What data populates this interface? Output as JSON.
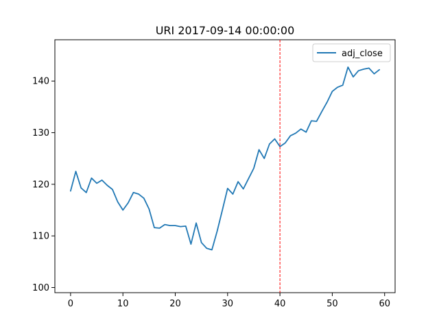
{
  "chart_data": {
    "type": "line",
    "title": "URI 2017-09-14 00:00:00",
    "xlabel": "",
    "ylabel": "",
    "xlim": [
      -3,
      62
    ],
    "ylim": [
      99,
      148
    ],
    "xticks": [
      0,
      10,
      20,
      30,
      40,
      50,
      60
    ],
    "yticks": [
      100,
      110,
      120,
      130,
      140
    ],
    "grid": false,
    "legend_position": "top-right",
    "series": [
      {
        "name": "adj_close",
        "color": "#1f77b4",
        "x": [
          0,
          1,
          2,
          3,
          4,
          5,
          6,
          7,
          8,
          9,
          10,
          11,
          12,
          13,
          14,
          15,
          16,
          17,
          18,
          19,
          20,
          21,
          22,
          23,
          24,
          25,
          26,
          27,
          28,
          29,
          30,
          31,
          32,
          33,
          34,
          35,
          36,
          37,
          38,
          39,
          40,
          41,
          42,
          43,
          44,
          45,
          46,
          47,
          48,
          49,
          50,
          51,
          52,
          53,
          54,
          55,
          56,
          57,
          58,
          59
        ],
        "values": [
          118.7,
          122.5,
          119.3,
          118.4,
          121.2,
          120.2,
          120.8,
          119.8,
          119.0,
          116.6,
          115.0,
          116.4,
          118.4,
          118.1,
          117.3,
          115.2,
          111.6,
          111.5,
          112.2,
          112.0,
          112.0,
          111.8,
          111.9,
          108.4,
          112.5,
          108.7,
          107.6,
          107.3,
          110.9,
          115.0,
          119.2,
          118.1,
          120.5,
          119.1,
          121.1,
          123.1,
          126.7,
          125.0,
          127.8,
          128.8,
          127.3,
          128.0,
          129.4,
          129.9,
          130.7,
          130.1,
          132.3,
          132.2,
          134.1,
          135.9,
          138.0,
          138.8,
          139.2,
          142.7,
          140.8,
          142.0,
          142.3,
          142.5,
          141.4,
          142.2
        ]
      }
    ],
    "annotations": [
      {
        "type": "vline",
        "x": 40,
        "color": "#ff0000",
        "style": "dashed"
      }
    ]
  }
}
